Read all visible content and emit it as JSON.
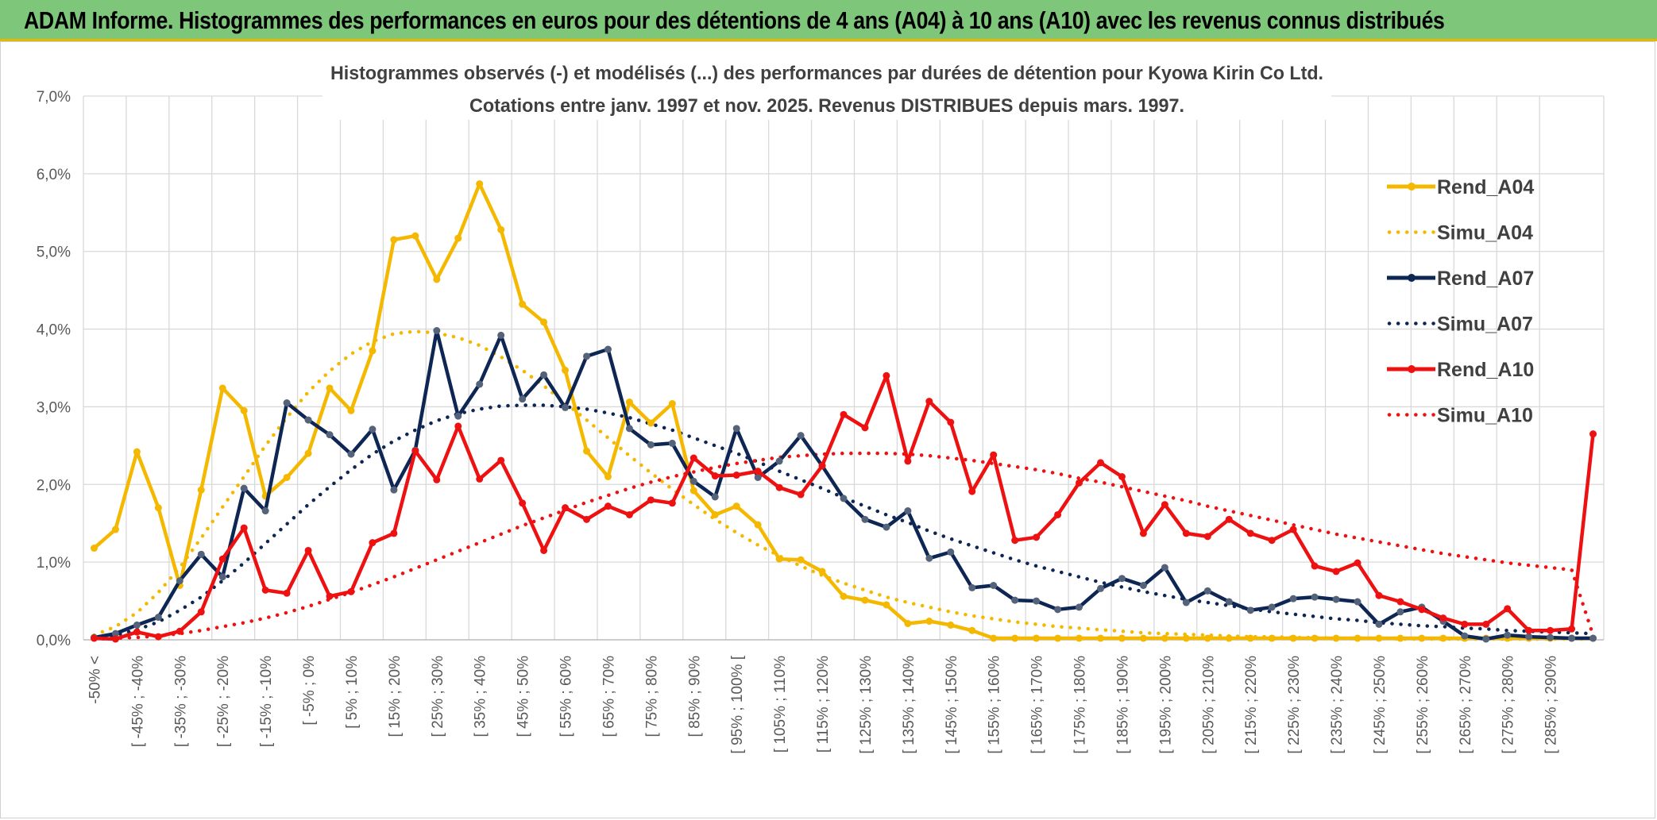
{
  "banner": {
    "title": "ADAM Informe. Histogrammes des performances en euros pour des détentions de 4 ans (A04) à 10 ans (A10) avec les revenus connus distribués"
  },
  "colors": {
    "banner_bg": "#7dc67a",
    "A04": "#f5b800",
    "A07": "#0d2654",
    "A10": "#ee1111",
    "grid": "#d9d9d9"
  },
  "chart_data": {
    "type": "line",
    "title": [
      "Histogrammes observés (-) et modélisés (...) des performances par durées de détention pour Kyowa Kirin Co Ltd.",
      "Cotations entre janv. 1997 et nov. 2025. Revenus DISTRIBUES depuis mars. 1997."
    ],
    "ylim": [
      0,
      7
    ],
    "y_ticks": [
      "0,0%",
      "1,0%",
      "2,0%",
      "3,0%",
      "4,0%",
      "5,0%",
      "6,0%",
      "7,0%"
    ],
    "x_tick_labels": [
      "-50% <",
      "[ -45% ; -40%",
      "[ -35% ; -30%",
      "[ -25% ; -20%",
      "[ -15% ; -10%",
      "[ -5% ; 0%",
      "[ 5% ; 10%",
      "[ 15% ; 20%",
      "[ 25% ; 30%",
      "[ 35% ; 40%",
      "[ 45% ; 50%",
      "[ 55% ; 60%",
      "[ 65% ; 70%",
      "[ 75% ; 80%",
      "[ 85% ; 90%",
      "[ 95% ; 100% [",
      "[ 105% ; 110%",
      "[ 115% ; 120%",
      "[ 125% ; 130%",
      "[ 135% ; 140%",
      "[ 145% ; 150%",
      "[ 155% ; 160%",
      "[ 165% ; 170%",
      "[ 175% ; 180%",
      "[ 185% ; 190%",
      "[ 195% ; 200%",
      "[ 205% ; 210%",
      "[ 215% ; 220%",
      "[ 225% ; 230%",
      "[ 235% ; 240%",
      "[ 245% ; 250%",
      "[ 255% ; 260%",
      "[ 265% ; 270%",
      "[ 275% ; 280%",
      "[ 285% ; 290%"
    ],
    "n_points": 71,
    "series": [
      {
        "name": "Rend_A04",
        "style": "solid",
        "color": "#f5b800",
        "values": [
          1.18,
          1.42,
          2.42,
          1.7,
          0.7,
          1.93,
          3.24,
          2.95,
          1.85,
          2.09,
          2.4,
          3.24,
          2.95,
          3.72,
          5.15,
          5.2,
          4.64,
          5.17,
          5.87,
          5.28,
          4.32,
          4.09,
          3.47,
          2.43,
          2.1,
          3.06,
          2.79,
          3.04,
          1.92,
          1.61,
          1.72,
          1.48,
          1.04,
          1.03,
          0.88,
          0.56,
          0.51,
          0.45,
          0.21,
          0.24,
          0.19,
          0.12,
          0.02,
          0.02,
          0.02,
          0.02,
          0.02,
          0.02,
          0.02,
          0.02,
          0.02,
          0.02,
          0.02,
          0.02,
          0.02,
          0.02,
          0.02,
          0.02,
          0.02,
          0.02,
          0.02,
          0.02,
          0.02,
          0.02,
          0.02,
          0.02,
          0.02,
          0.02,
          0.02,
          0.02,
          0.02
        ]
      },
      {
        "name": "Simu_A04",
        "style": "dotted",
        "color": "#f5b800",
        "values": [
          0.06,
          0.17,
          0.35,
          0.61,
          0.93,
          1.31,
          1.71,
          2.1,
          2.5,
          2.86,
          3.19,
          3.46,
          3.68,
          3.84,
          3.94,
          3.97,
          3.95,
          3.89,
          3.79,
          3.64,
          3.47,
          3.27,
          3.05,
          2.83,
          2.6,
          2.37,
          2.15,
          1.94,
          1.74,
          1.55,
          1.38,
          1.22,
          1.08,
          0.95,
          0.83,
          0.73,
          0.64,
          0.55,
          0.48,
          0.42,
          0.36,
          0.31,
          0.27,
          0.23,
          0.2,
          0.17,
          0.15,
          0.13,
          0.11,
          0.09,
          0.08,
          0.07,
          0.06,
          0.05,
          0.04,
          0.04,
          0.03,
          0.03,
          0.02,
          0.02,
          0.02,
          0.01,
          0.01,
          0.01,
          0.01,
          0.01,
          0.01,
          0.01,
          0.01,
          0.01,
          0.01
        ]
      },
      {
        "name": "Rend_A07",
        "style": "solid",
        "color": "#0d2654",
        "values": [
          0.03,
          0.08,
          0.19,
          0.29,
          0.76,
          1.1,
          0.81,
          1.95,
          1.66,
          3.05,
          2.83,
          2.64,
          2.39,
          2.71,
          1.93,
          2.44,
          3.98,
          2.88,
          3.29,
          3.92,
          3.1,
          3.41,
          2.99,
          3.65,
          3.74,
          2.72,
          2.51,
          2.53,
          2.04,
          1.84,
          2.72,
          2.09,
          2.3,
          2.63,
          2.24,
          1.82,
          1.55,
          1.45,
          1.66,
          1.05,
          1.13,
          0.67,
          0.7,
          0.51,
          0.5,
          0.39,
          0.42,
          0.66,
          0.79,
          0.7,
          0.93,
          0.48,
          0.63,
          0.49,
          0.38,
          0.42,
          0.53,
          0.55,
          0.52,
          0.49,
          0.2,
          0.36,
          0.42,
          0.24,
          0.05,
          0.01,
          0.06,
          0.04,
          0.03,
          0.02,
          0.02
        ]
      },
      {
        "name": "Simu_A07",
        "style": "dotted",
        "color": "#0d2654",
        "values": [
          0.02,
          0.06,
          0.13,
          0.23,
          0.38,
          0.55,
          0.76,
          0.99,
          1.24,
          1.49,
          1.74,
          1.97,
          2.19,
          2.39,
          2.56,
          2.7,
          2.82,
          2.91,
          2.97,
          3.01,
          3.02,
          3.02,
          3.0,
          2.97,
          2.92,
          2.86,
          2.78,
          2.7,
          2.6,
          2.5,
          2.4,
          2.29,
          2.17,
          2.06,
          1.95,
          1.83,
          1.72,
          1.61,
          1.51,
          1.4,
          1.3,
          1.21,
          1.12,
          1.03,
          0.95,
          0.88,
          0.81,
          0.74,
          0.68,
          0.62,
          0.57,
          0.52,
          0.48,
          0.44,
          0.4,
          0.36,
          0.33,
          0.3,
          0.27,
          0.25,
          0.22,
          0.2,
          0.18,
          0.17,
          0.15,
          0.14,
          0.12,
          0.11,
          0.1,
          0.09,
          0.08
        ]
      },
      {
        "name": "Rend_A10",
        "style": "solid",
        "color": "#ee1111",
        "values": [
          0.02,
          0.01,
          0.1,
          0.04,
          0.11,
          0.36,
          1.04,
          1.44,
          0.64,
          0.6,
          1.15,
          0.56,
          0.62,
          1.25,
          1.37,
          2.43,
          2.06,
          2.75,
          2.07,
          2.31,
          1.76,
          1.15,
          1.7,
          1.55,
          1.72,
          1.61,
          1.8,
          1.76,
          2.34,
          2.11,
          2.12,
          2.17,
          1.96,
          1.87,
          2.24,
          2.9,
          2.73,
          3.4,
          2.3,
          3.07,
          2.8,
          1.91,
          2.38,
          1.28,
          1.32,
          1.61,
          2.02,
          2.28,
          2.1,
          1.37,
          1.74,
          1.37,
          1.33,
          1.55,
          1.37,
          1.28,
          1.42,
          0.95,
          0.88,
          0.99,
          0.57,
          0.49,
          0.39,
          0.28,
          0.2,
          0.2,
          0.4,
          0.12,
          0.12,
          0.14,
          2.65
        ]
      },
      {
        "name": "Simu_A10",
        "style": "dotted",
        "color": "#ee1111",
        "values": [
          0.01,
          0.02,
          0.03,
          0.05,
          0.08,
          0.12,
          0.17,
          0.22,
          0.28,
          0.35,
          0.43,
          0.52,
          0.61,
          0.71,
          0.81,
          0.92,
          1.03,
          1.14,
          1.25,
          1.36,
          1.47,
          1.57,
          1.67,
          1.77,
          1.86,
          1.95,
          2.03,
          2.1,
          2.16,
          2.22,
          2.27,
          2.31,
          2.35,
          2.37,
          2.39,
          2.4,
          2.4,
          2.4,
          2.39,
          2.37,
          2.34,
          2.31,
          2.27,
          2.23,
          2.19,
          2.14,
          2.08,
          2.03,
          1.97,
          1.91,
          1.85,
          1.79,
          1.72,
          1.66,
          1.6,
          1.54,
          1.48,
          1.42,
          1.36,
          1.31,
          1.26,
          1.21,
          1.16,
          1.11,
          1.07,
          1.03,
          0.99,
          0.96,
          0.93,
          0.9,
          0.06
        ]
      }
    ],
    "legend_position": "right"
  }
}
